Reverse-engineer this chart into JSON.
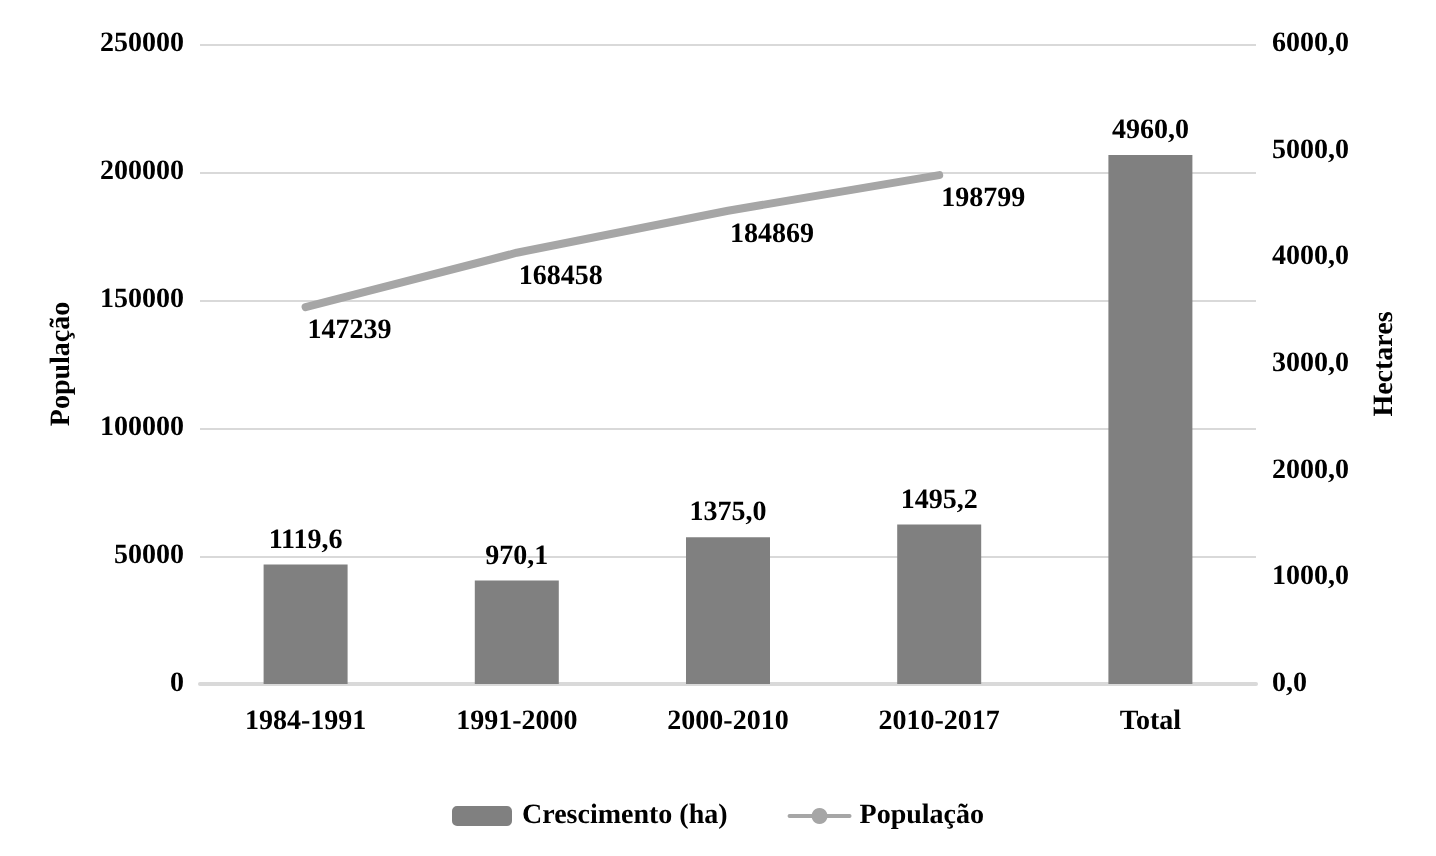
{
  "chart_data": {
    "type": "bar",
    "ylabel": "População",
    "y2label": "Hectares",
    "categories": [
      "1984-1991",
      "1991-2000",
      "2000-2010",
      "2010-2017",
      "Total"
    ],
    "series": [
      {
        "name": "Crescimento (ha)",
        "axis": "y2",
        "color": "#808080",
        "values": [
          1119.6,
          970.1,
          1375.0,
          1495.2,
          4960.0
        ],
        "value_labels": [
          "1119,6",
          "970,1",
          "1375,0",
          "1495,2",
          "4960,0"
        ]
      },
      {
        "name": "População",
        "type": "line",
        "color": "#a6a6a6",
        "values": [
          147239,
          168458,
          184869,
          198799,
          null
        ],
        "value_labels": [
          "147239",
          "168458",
          "184869",
          "198799",
          null
        ]
      }
    ],
    "ylim": [
      0,
      250000
    ],
    "yticks": [
      0,
      50000,
      100000,
      150000,
      200000,
      250000
    ],
    "y2lim": [
      0,
      6000
    ],
    "y2ticks": [
      {
        "value": 0,
        "label": "0,0"
      },
      {
        "value": 1000,
        "label": "1000,0"
      },
      {
        "value": 2000,
        "label": "2000,0"
      },
      {
        "value": 3000,
        "label": "3000,0"
      },
      {
        "value": 4000,
        "label": "4000,0"
      },
      {
        "value": 5000,
        "label": "5000,0"
      },
      {
        "value": 6000,
        "label": "6000,0"
      }
    ],
    "grid": "y",
    "legend": "bottom",
    "marker": "none",
    "line_style": "solid"
  }
}
